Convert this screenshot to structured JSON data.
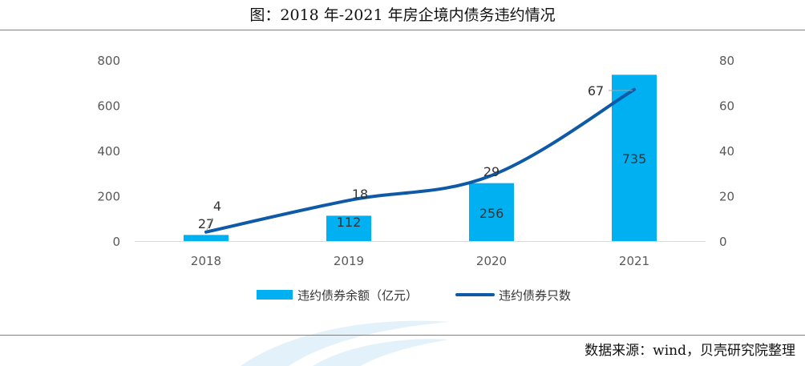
{
  "title": "图：2018 年-2021 年房企境内债务违约情况",
  "source": "数据来源：wind，贝壳研究院整理",
  "colors": {
    "bar": "#00b0f0",
    "line": "#0e5aa7",
    "axis_text": "#595959",
    "watermark": "#e3f1fb"
  },
  "chart_data": {
    "type": "bar",
    "categories": [
      "2018",
      "2019",
      "2020",
      "2021"
    ],
    "series": [
      {
        "name": "违约债券余额（亿元）",
        "type": "bar",
        "axis": "left",
        "values": [
          27,
          112,
          256,
          735
        ],
        "labels": [
          "27",
          "112",
          "256",
          "735"
        ]
      },
      {
        "name": "违约债券只数",
        "type": "line",
        "axis": "right",
        "values": [
          4,
          18,
          29,
          67
        ],
        "labels": [
          "4",
          "18",
          "29",
          "67"
        ]
      }
    ],
    "y_left": {
      "min": 0,
      "max": 800,
      "ticks": [
        "0",
        "200",
        "400",
        "600",
        "800"
      ]
    },
    "y_right": {
      "min": 0,
      "max": 80,
      "ticks": [
        "0",
        "20",
        "40",
        "60",
        "80"
      ]
    },
    "grid": false,
    "legend": "bottom"
  }
}
